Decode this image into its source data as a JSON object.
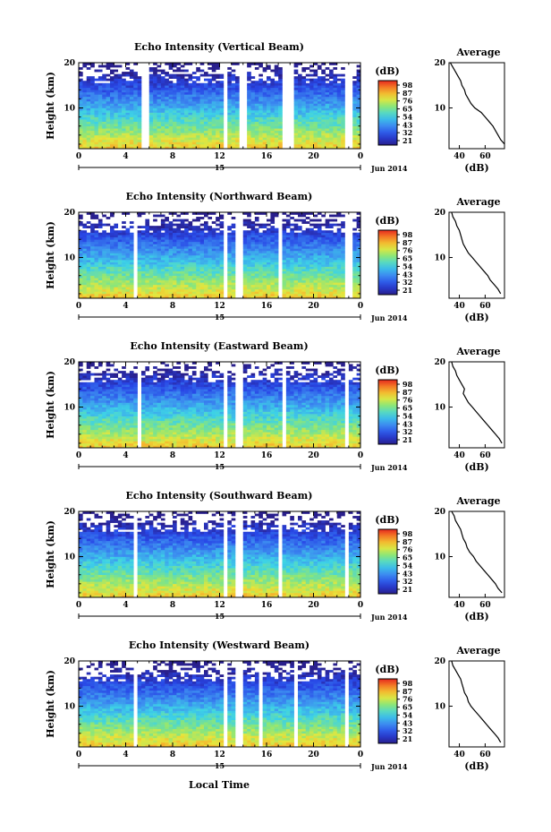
{
  "figure": {
    "xlabel": "Local Time"
  },
  "chart_data": [
    {
      "type": "heatmap",
      "title": "Echo Intensity (Vertical Beam)",
      "ylabel": "Height (km)",
      "xticks": [
        "0",
        "4",
        "8",
        "12",
        "16",
        "20",
        "0"
      ],
      "yticks": [
        "20",
        "10"
      ],
      "date_marker": "15",
      "date_label": "Jun 2014",
      "colorbar": {
        "unit": "(dB)",
        "ticks": [
          "98",
          "87",
          "76",
          "65",
          "54",
          "43",
          "32",
          "21"
        ]
      },
      "gaps_hours": [
        [
          5.4,
          6.0
        ],
        [
          12.2,
          12.8
        ],
        [
          13.7,
          14.2
        ],
        [
          17.3,
          18.3
        ],
        [
          22.8,
          23.2
        ]
      ],
      "profile": {
        "title": "Average",
        "xlabel": "(dB)",
        "xticks": [
          "40",
          "60"
        ],
        "yticks": [
          "20",
          "10"
        ],
        "x_range": [
          32,
          75
        ],
        "heights_km": [
          2,
          3,
          4,
          5,
          6,
          7,
          8,
          9,
          10,
          11,
          12,
          13,
          14,
          15,
          16,
          17,
          18,
          19,
          20
        ],
        "values_db": [
          75,
          72,
          70,
          68,
          66,
          63,
          60,
          57,
          52,
          49,
          47,
          45,
          44,
          42,
          41,
          39,
          37,
          35,
          33
        ]
      }
    },
    {
      "type": "heatmap",
      "title": "Echo Intensity (Northward Beam)",
      "ylabel": "Height (km)",
      "xticks": [
        "0",
        "4",
        "8",
        "12",
        "16",
        "20",
        "0"
      ],
      "yticks": [
        "20",
        "10"
      ],
      "date_marker": "15",
      "date_label": "Jun 2014",
      "colorbar": {
        "unit": "(dB)",
        "ticks": [
          "98",
          "87",
          "76",
          "65",
          "54",
          "43",
          "32",
          "21"
        ]
      },
      "gaps_hours": [
        [
          4.6,
          5.0
        ],
        [
          12.2,
          12.8
        ],
        [
          13.5,
          13.9
        ],
        [
          17.0,
          17.4
        ],
        [
          22.7,
          23.2
        ]
      ],
      "profile": {
        "title": "Average",
        "xlabel": "(dB)",
        "xticks": [
          "40",
          "60"
        ],
        "yticks": [
          "20",
          "10"
        ],
        "x_range": [
          32,
          75
        ],
        "heights_km": [
          2,
          3,
          4,
          5,
          6,
          7,
          8,
          9,
          10,
          11,
          12,
          13,
          14,
          15,
          16,
          17,
          18,
          19,
          20
        ],
        "values_db": [
          72,
          70,
          67,
          64,
          62,
          59,
          56,
          53,
          50,
          47,
          45,
          43,
          42,
          41,
          40,
          38,
          37,
          35,
          34
        ]
      }
    },
    {
      "type": "heatmap",
      "title": "Echo Intensity (Eastward Beam)",
      "ylabel": "Height (km)",
      "xticks": [
        "0",
        "4",
        "8",
        "12",
        "16",
        "20",
        "0"
      ],
      "yticks": [
        "20",
        "10"
      ],
      "date_marker": "15",
      "date_label": "Jun 2014",
      "colorbar": {
        "unit": "(dB)",
        "ticks": [
          "98",
          "87",
          "76",
          "65",
          "54",
          "43",
          "32",
          "21"
        ]
      },
      "gaps_hours": [
        [
          5.0,
          5.3
        ],
        [
          12.2,
          12.7
        ],
        [
          13.5,
          13.9
        ],
        [
          17.2,
          17.6
        ],
        [
          22.7,
          23.1
        ]
      ],
      "profile": {
        "title": "Average",
        "xlabel": "(dB)",
        "xticks": [
          "40",
          "60"
        ],
        "yticks": [
          "20",
          "10"
        ],
        "x_range": [
          32,
          75
        ],
        "heights_km": [
          2,
          3,
          4,
          5,
          6,
          7,
          8,
          9,
          10,
          11,
          12,
          13,
          14,
          15,
          16,
          17,
          18,
          19,
          20
        ],
        "values_db": [
          73,
          71,
          68,
          65,
          62,
          59,
          56,
          53,
          50,
          47,
          45,
          43,
          44,
          42,
          40,
          38,
          37,
          35,
          34
        ]
      }
    },
    {
      "type": "heatmap",
      "title": "Echo Intensity (Southward Beam)",
      "ylabel": "Height (km)",
      "xticks": [
        "0",
        "4",
        "8",
        "12",
        "16",
        "20",
        "0"
      ],
      "yticks": [
        "20",
        "10"
      ],
      "date_marker": "15",
      "date_label": "Jun 2014",
      "colorbar": {
        "unit": "(dB)",
        "ticks": [
          "98",
          "87",
          "76",
          "65",
          "54",
          "43",
          "32",
          "21"
        ]
      },
      "gaps_hours": [
        [
          4.6,
          5.0
        ],
        [
          12.2,
          12.7
        ],
        [
          13.5,
          13.9
        ],
        [
          17.0,
          17.4
        ],
        [
          22.7,
          23.1
        ]
      ],
      "profile": {
        "title": "Average",
        "xlabel": "(dB)",
        "xticks": [
          "40",
          "60"
        ],
        "yticks": [
          "20",
          "10"
        ],
        "x_range": [
          32,
          75
        ],
        "heights_km": [
          2,
          3,
          4,
          5,
          6,
          7,
          8,
          9,
          10,
          11,
          12,
          13,
          14,
          15,
          16,
          17,
          18,
          19,
          20
        ],
        "values_db": [
          73,
          70,
          68,
          65,
          62,
          59,
          56,
          53,
          51,
          48,
          46,
          45,
          43,
          42,
          41,
          39,
          37,
          36,
          34
        ]
      }
    },
    {
      "type": "heatmap",
      "title": "Echo Intensity (Westward Beam)",
      "ylabel": "Height (km)",
      "xticks": [
        "0",
        "4",
        "8",
        "12",
        "16",
        "20",
        "0"
      ],
      "yticks": [
        "20",
        "10"
      ],
      "date_marker": "15",
      "date_label": "Jun 2014",
      "colorbar": {
        "unit": "(dB)",
        "ticks": [
          "98",
          "87",
          "76",
          "65",
          "54",
          "43",
          "32",
          "21"
        ]
      },
      "gaps_hours": [
        [
          4.6,
          5.0
        ],
        [
          12.2,
          12.7
        ],
        [
          13.5,
          13.9
        ],
        [
          15.3,
          15.6
        ],
        [
          18.2,
          18.7
        ],
        [
          22.7,
          23.1
        ]
      ],
      "profile": {
        "title": "Average",
        "xlabel": "(dB)",
        "xticks": [
          "40",
          "60"
        ],
        "yticks": [
          "20",
          "10"
        ],
        "x_range": [
          32,
          75
        ],
        "heights_km": [
          2,
          3,
          4,
          5,
          6,
          7,
          8,
          9,
          10,
          11,
          12,
          13,
          14,
          15,
          16,
          17,
          18,
          19,
          20
        ],
        "values_db": [
          72,
          70,
          67,
          64,
          61,
          58,
          55,
          52,
          49,
          47,
          46,
          44,
          43,
          42,
          41,
          39,
          37,
          35,
          34
        ]
      }
    }
  ]
}
